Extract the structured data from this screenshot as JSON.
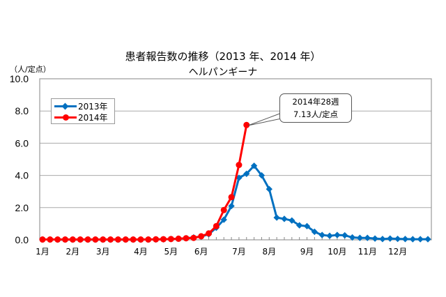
{
  "chart_data": {
    "type": "line",
    "title": "患者報告数の推移（2013年、2014年）",
    "subtitle": "ヘルパンギーナ",
    "ylabel": "（人/定点）",
    "xlabel": "",
    "ylim": [
      0,
      10
    ],
    "yticks": [
      "0.0",
      "2.0",
      "4.0",
      "6.0",
      "8.0",
      "10.0"
    ],
    "xtick_labels": [
      "1月",
      "2月",
      "3月",
      "4月",
      "5月",
      "6月",
      "7月",
      "8月",
      "9月",
      "10月",
      "11月",
      "12月"
    ],
    "xtick_weeks": [
      1,
      5,
      9,
      14,
      18,
      22,
      27,
      31,
      36,
      40,
      44,
      48
    ],
    "grid": "horizontal",
    "legend_position": "upper-left",
    "x": [
      1,
      2,
      3,
      4,
      5,
      6,
      7,
      8,
      9,
      10,
      11,
      12,
      13,
      14,
      15,
      16,
      17,
      18,
      19,
      20,
      21,
      22,
      23,
      24,
      25,
      26,
      27,
      28,
      29,
      30,
      31,
      32,
      33,
      34,
      35,
      36,
      37,
      38,
      39,
      40,
      41,
      42,
      43,
      44,
      45,
      46,
      47,
      48,
      49,
      50,
      51,
      52
    ],
    "series": [
      {
        "name": "2013年",
        "color": "#0070C0",
        "marker": "diamond",
        "values": [
          0.02,
          0.02,
          0.01,
          0.01,
          0.01,
          0.01,
          0.01,
          0.01,
          0.01,
          0.01,
          0.01,
          0.01,
          0.01,
          0.01,
          0.02,
          0.02,
          0.03,
          0.05,
          0.07,
          0.1,
          0.15,
          0.2,
          0.35,
          0.75,
          1.25,
          2.1,
          3.85,
          4.1,
          4.6,
          4.0,
          3.15,
          1.38,
          1.3,
          1.2,
          0.9,
          0.85,
          0.5,
          0.3,
          0.25,
          0.3,
          0.28,
          0.15,
          0.12,
          0.12,
          0.08,
          0.05,
          0.08,
          0.06,
          0.05,
          0.04,
          0.04,
          0.04
        ]
      },
      {
        "name": "2014年",
        "color": "#FF0000",
        "marker": "circle",
        "values": [
          0.02,
          0.02,
          0.02,
          0.02,
          0.02,
          0.02,
          0.02,
          0.02,
          0.02,
          0.02,
          0.02,
          0.02,
          0.02,
          0.02,
          0.02,
          0.03,
          0.04,
          0.05,
          0.07,
          0.1,
          0.12,
          0.22,
          0.4,
          0.85,
          1.85,
          2.65,
          4.65,
          7.13
        ]
      }
    ],
    "annotations": [
      {
        "text": "2014年28週\n7.13人/定点",
        "x": 28,
        "y": 7.13,
        "series": "2014年"
      }
    ]
  },
  "header": {
    "title": "患者報告数の推移（2013 年、2014 年）",
    "subtitle": "ヘルパンギーナ",
    "unit": "（人/定点）"
  },
  "legend": {
    "items": [
      {
        "label": "2013年",
        "color": "#0070C0"
      },
      {
        "label": "2014年",
        "color": "#FF0000"
      }
    ]
  },
  "callout": {
    "line1": "2014年28週",
    "line2": "7.13人/定点"
  }
}
